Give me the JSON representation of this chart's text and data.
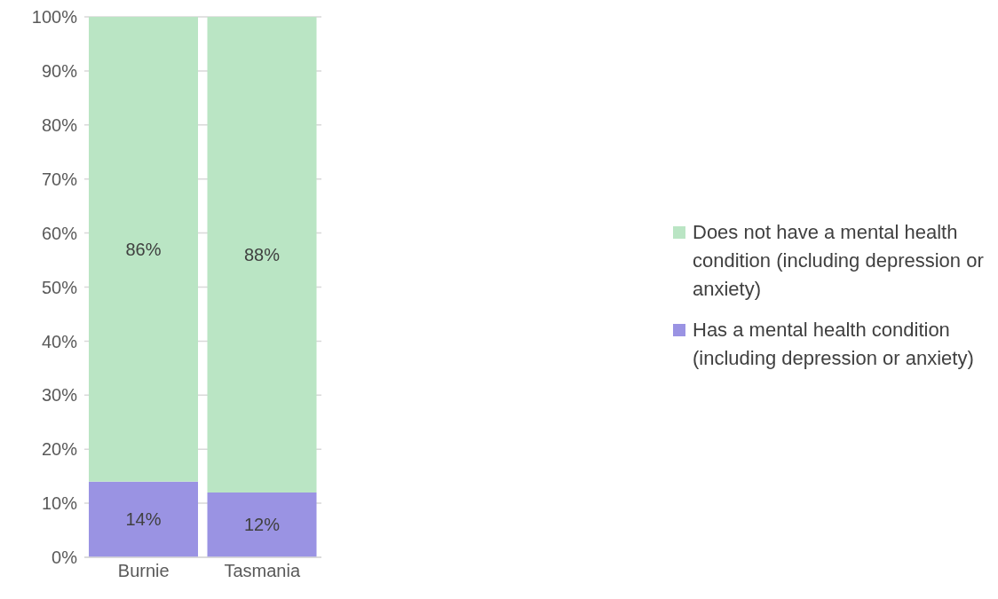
{
  "chart_data": {
    "type": "bar",
    "stacked": true,
    "categories": [
      "Burnie",
      "Tasmania"
    ],
    "series": [
      {
        "name": "Has a mental health condition (including depression or anxiety)",
        "color": "#9a93e3",
        "values": [
          14,
          12
        ],
        "value_labels": [
          "14%",
          "12%"
        ]
      },
      {
        "name": "Does not have a mental health condition (including depression or anxiety)",
        "color": "#bae5c4",
        "values": [
          86,
          88
        ],
        "value_labels": [
          "86%",
          "88%"
        ]
      }
    ],
    "ylim": [
      0,
      100
    ],
    "yticks": [
      {
        "value": 0,
        "label": "0%"
      },
      {
        "value": 10,
        "label": "10%"
      },
      {
        "value": 20,
        "label": "20%"
      },
      {
        "value": 30,
        "label": "30%"
      },
      {
        "value": 40,
        "label": "40%"
      },
      {
        "value": 50,
        "label": "50%"
      },
      {
        "value": 60,
        "label": "60%"
      },
      {
        "value": 70,
        "label": "70%"
      },
      {
        "value": 80,
        "label": "80%"
      },
      {
        "value": 90,
        "label": "90%"
      },
      {
        "value": 100,
        "label": "100%"
      }
    ],
    "grid": "y",
    "legend": "right"
  }
}
